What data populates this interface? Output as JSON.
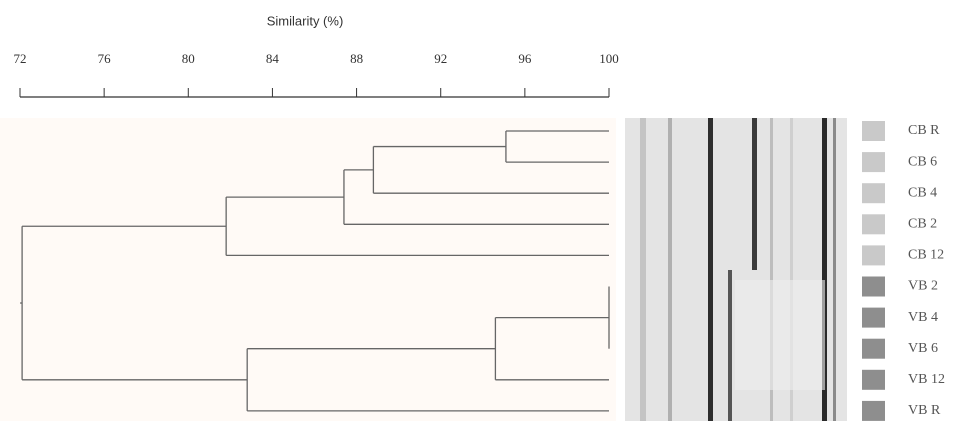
{
  "chart_data": {
    "type": "dendrogram",
    "x_label": "Similarity (%)",
    "xlim": [
      72,
      100
    ],
    "xticks": [
      72,
      76,
      80,
      84,
      88,
      92,
      96,
      100
    ],
    "tree": {
      "similarity": 72.1,
      "children": [
        {
          "similarity": 81.8,
          "children": [
            {
              "similarity": 87.4,
              "children": [
                {
                  "similarity": 88.8,
                  "children": [
                    {
                      "similarity": 95.1,
                      "children": [
                        {
                          "label": "CB R",
                          "color": "#c9c9c9"
                        },
                        {
                          "label": "CB 6",
                          "color": "#c9c9c9"
                        }
                      ]
                    },
                    {
                      "label": "CB 4",
                      "color": "#c9c9c9"
                    }
                  ]
                },
                {
                  "label": "CB 2",
                  "color": "#c9c9c9"
                }
              ]
            },
            {
              "label": "CB 12",
              "color": "#c9c9c9"
            }
          ]
        },
        {
          "similarity": 82.8,
          "children": [
            {
              "similarity": 94.6,
              "children": [
                {
                  "similarity": 100,
                  "children": [
                    {
                      "label": "VB 2",
                      "color": "#8e8e8e"
                    },
                    {
                      "label": "VB 4",
                      "color": "#8e8e8e"
                    },
                    {
                      "label": "VB 6",
                      "color": "#8e8e8e"
                    }
                  ]
                },
                {
                  "label": "VB 12",
                  "color": "#8e8e8e"
                }
              ]
            },
            {
              "label": "VB R",
              "color": "#8e8e8e"
            }
          ]
        }
      ]
    }
  }
}
